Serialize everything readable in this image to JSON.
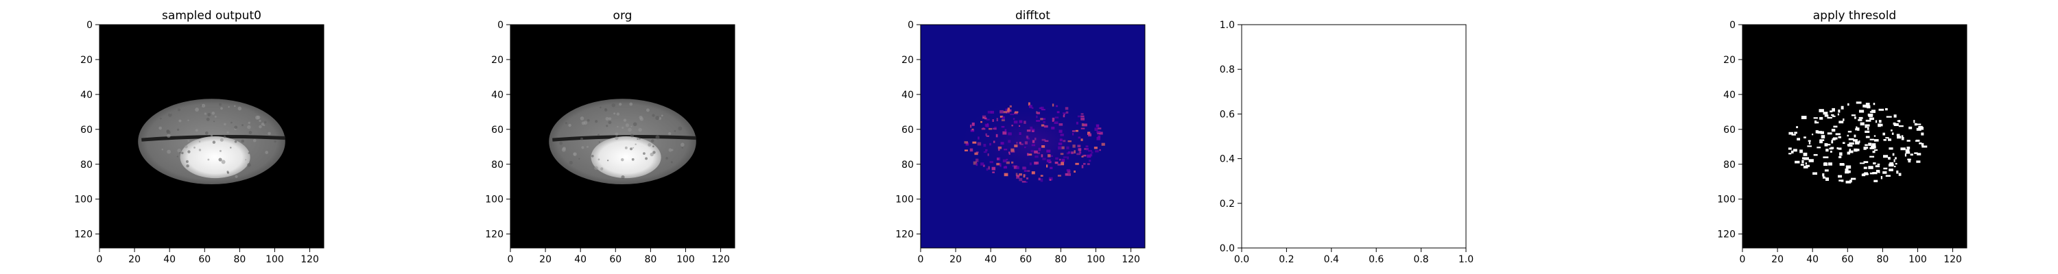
{
  "panels": [
    {
      "title": "sampled output0",
      "kind": "image",
      "colormap": "gray",
      "content": "brain-slice",
      "xticks": [
        "0",
        "20",
        "40",
        "60",
        "80",
        "100",
        "120"
      ],
      "yticks": [
        "0",
        "20",
        "40",
        "60",
        "80",
        "100",
        "120"
      ]
    },
    {
      "title": "org",
      "kind": "image",
      "colormap": "gray",
      "content": "brain-slice",
      "xticks": [
        "0",
        "20",
        "40",
        "60",
        "80",
        "100",
        "120"
      ],
      "yticks": [
        "0",
        "20",
        "40",
        "60",
        "80",
        "100",
        "120"
      ]
    },
    {
      "title": "difftot",
      "kind": "image",
      "colormap": "plasma",
      "content": "difference-map",
      "xticks": [
        "0",
        "20",
        "40",
        "60",
        "80",
        "100",
        "120"
      ],
      "yticks": [
        "0",
        "20",
        "40",
        "60",
        "80",
        "100",
        "120"
      ]
    },
    {
      "title": "",
      "kind": "empty-axes",
      "xticks": [
        "0.0",
        "0.2",
        "0.4",
        "0.6",
        "0.8",
        "1.0"
      ],
      "yticks": [
        "0.0",
        "0.2",
        "0.4",
        "0.6",
        "0.8",
        "1.0"
      ]
    },
    {
      "title": "apply thresold",
      "kind": "image",
      "colormap": "binary",
      "content": "threshold-mask",
      "xticks": [
        "0",
        "20",
        "40",
        "60",
        "80",
        "100",
        "120"
      ],
      "yticks": [
        "0",
        "20",
        "40",
        "60",
        "80",
        "100",
        "120"
      ]
    }
  ],
  "chart_data": [
    {
      "type": "heatmap",
      "title": "sampled output0",
      "xlim": [
        0,
        128
      ],
      "ylim": [
        128,
        0
      ],
      "colormap": "gray",
      "x_ticks": [
        0,
        20,
        40,
        60,
        80,
        100,
        120
      ],
      "y_ticks": [
        0,
        20,
        40,
        60,
        80,
        100,
        120
      ]
    },
    {
      "type": "heatmap",
      "title": "org",
      "xlim": [
        0,
        128
      ],
      "ylim": [
        128,
        0
      ],
      "colormap": "gray",
      "x_ticks": [
        0,
        20,
        40,
        60,
        80,
        100,
        120
      ],
      "y_ticks": [
        0,
        20,
        40,
        60,
        80,
        100,
        120
      ]
    },
    {
      "type": "heatmap",
      "title": "difftot",
      "xlim": [
        0,
        128
      ],
      "ylim": [
        128,
        0
      ],
      "colormap": "plasma",
      "x_ticks": [
        0,
        20,
        40,
        60,
        80,
        100,
        120
      ],
      "y_ticks": [
        0,
        20,
        40,
        60,
        80,
        100,
        120
      ]
    },
    {
      "type": "scatter",
      "title": "",
      "xlim": [
        0,
        1
      ],
      "ylim": [
        0,
        1
      ],
      "series": [],
      "x_ticks": [
        0.0,
        0.2,
        0.4,
        0.6,
        0.8,
        1.0
      ],
      "y_ticks": [
        0.0,
        0.2,
        0.4,
        0.6,
        0.8,
        1.0
      ]
    },
    {
      "type": "heatmap",
      "title": "apply thresold",
      "xlim": [
        0,
        128
      ],
      "ylim": [
        128,
        0
      ],
      "colormap": "binary",
      "x_ticks": [
        0,
        20,
        40,
        60,
        80,
        100,
        120
      ],
      "y_ticks": [
        0,
        20,
        40,
        60,
        80,
        100,
        120
      ]
    }
  ],
  "colors": {
    "background": "#000000",
    "brain": "#7a7a7a",
    "lesion": "#f2f2f2",
    "diff_background": "#0d0887",
    "diff_low": "#6a00a8",
    "diff_mid": "#b12a90",
    "diff_high": "#e16462",
    "mask": "#ffffff"
  }
}
